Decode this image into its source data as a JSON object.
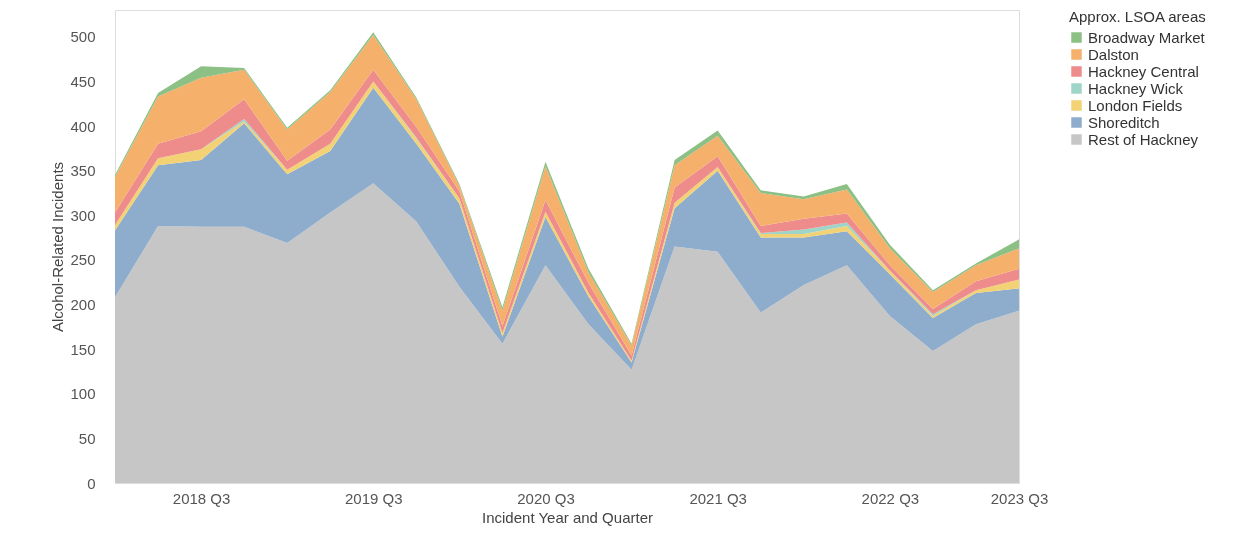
{
  "chart_data": {
    "type": "area",
    "stacked": true,
    "xlabel": "Incident Year and Quarter",
    "ylabel": "Alcohol-Related Incidents",
    "legend_title": "Approx. LSOA areas",
    "legend": "top right",
    "grid": false,
    "categories": [
      null,
      null,
      "2018 Q3",
      null,
      null,
      null,
      "2019 Q3",
      null,
      null,
      null,
      "2020 Q3",
      null,
      null,
      null,
      "2021 Q3",
      null,
      null,
      null,
      "2022 Q3",
      null,
      null,
      "2023 Q3"
    ],
    "ylim": [
      0,
      530
    ],
    "yticks": [
      0,
      50,
      100,
      150,
      200,
      250,
      300,
      350,
      400,
      450,
      500
    ],
    "series": [
      {
        "name": "Rest of Hackney",
        "color": "#c6c6c6",
        "values": [
          208,
          288,
          287,
          287,
          269,
          303,
          336,
          293,
          220,
          156,
          244,
          178,
          127,
          265,
          259,
          191,
          222,
          244,
          187,
          148,
          178,
          193
        ]
      },
      {
        "name": "Shoreditch",
        "color": "#8eaccc",
        "values": [
          75,
          68,
          75,
          116,
          77,
          69,
          107,
          87,
          93,
          8,
          54,
          31,
          8,
          43,
          91,
          84,
          53,
          38,
          47,
          37,
          35,
          25
        ]
      },
      {
        "name": "London Fields",
        "color": "#f2d275",
        "values": [
          6,
          8,
          12,
          2,
          5,
          8,
          7,
          6,
          6,
          4,
          6,
          4,
          2,
          6,
          4,
          4,
          4,
          6,
          4,
          2,
          3,
          10
        ]
      },
      {
        "name": "Hackney Wick",
        "color": "#9fd4c8",
        "values": [
          0,
          0,
          0,
          3,
          0,
          0,
          0,
          1,
          0,
          0,
          0,
          0,
          0,
          0,
          0,
          1,
          5,
          4,
          0,
          2,
          0,
          0
        ]
      },
      {
        "name": "Hackney Central",
        "color": "#ee8c8c",
        "values": [
          14,
          16,
          20,
          22,
          10,
          16,
          13,
          12,
          8,
          8,
          13,
          11,
          6,
          17,
          12,
          8,
          12,
          10,
          6,
          6,
          10,
          12
        ]
      },
      {
        "name": "Dalston",
        "color": "#f5b06b",
        "values": [
          40,
          53,
          60,
          33,
          35,
          42,
          39,
          31,
          6,
          17,
          38,
          12,
          11,
          25,
          23,
          37,
          22,
          27,
          19,
          19,
          18,
          23
        ]
      },
      {
        "name": "Broadway Market",
        "color": "#8cc084",
        "values": [
          2,
          4,
          13,
          2,
          2,
          2,
          3,
          2,
          2,
          4,
          5,
          4,
          2,
          6,
          6,
          3,
          3,
          6,
          4,
          2,
          2,
          10
        ]
      }
    ]
  }
}
